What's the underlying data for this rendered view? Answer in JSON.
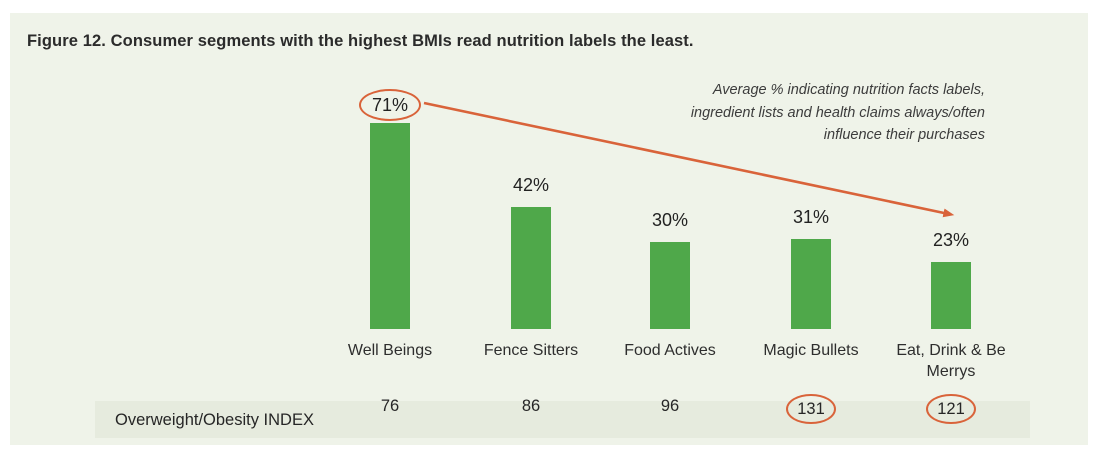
{
  "figure": {
    "title": "Figure 12. Consumer segments with the highest BMIs read nutrition labels the least.",
    "annotation": {
      "line1": "Average % indicating nutrition facts labels,",
      "line2": "ingredient lists and health claims always/often",
      "line3": "influence their purchases"
    }
  },
  "chart_data": {
    "type": "bar",
    "title": "Figure 12. Consumer segments with the highest BMIs read nutrition labels the least.",
    "categories": [
      "Well Beings",
      "Fence Sitters",
      "Food Actives",
      "Magic Bullets",
      "Eat, Drink & Be Merrys"
    ],
    "values": [
      71,
      42,
      30,
      31,
      23
    ],
    "value_labels": [
      "71%",
      "42%",
      "30%",
      "31%",
      "23%"
    ],
    "highlighted_value": "71%",
    "unit": "%",
    "ylim": [
      0,
      80
    ],
    "grid": false,
    "legend": "none",
    "annotation": "Average % indicating nutrition facts labels, ingredient lists and health claims always/often influence their purchases",
    "trend_arrow": "from 71% (Well Beings) down-right toward Eat, Drink & Be Merrys",
    "index_row": {
      "label": "Overweight/Obesity INDEX",
      "values": [
        76,
        86,
        96,
        131,
        121
      ],
      "circled_values": [
        131,
        121
      ]
    },
    "bar_color": "#4fa84a",
    "accent_color": "#d9633a"
  },
  "colors": {
    "page_background": "#ffffff",
    "panel_background": "#eff3e9",
    "index_band_background": "#e6ebde",
    "bar_green": "#4fa84a",
    "accent_orange": "#d9633a",
    "text": "#2d2d2d"
  }
}
